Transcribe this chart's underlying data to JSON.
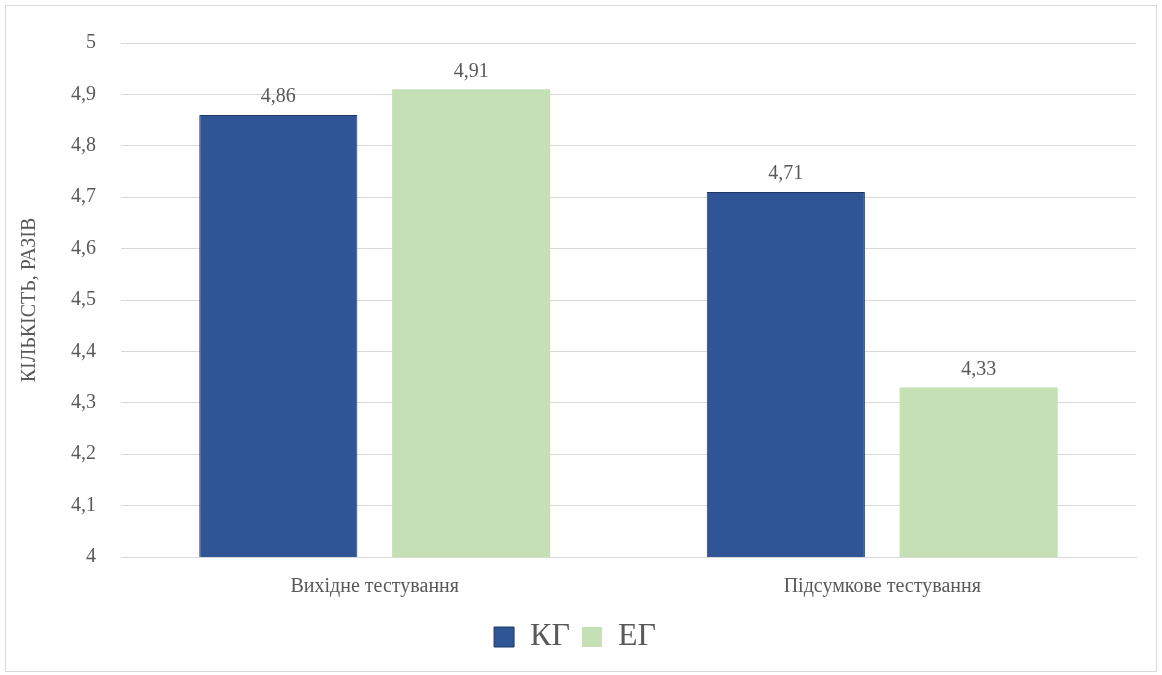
{
  "chart_data": {
    "type": "bar",
    "ylabel": "КІЛЬКІСТЬ, РАЗІВ",
    "categories": [
      "Вихідне тестування",
      "Підсумкове тестування"
    ],
    "series": [
      {
        "name": "КГ",
        "color": "#2f5597",
        "values": [
          4.86,
          4.71
        ],
        "value_labels": [
          "4,86",
          "4,71"
        ]
      },
      {
        "name": "ЕГ",
        "color": "#c5e0b4",
        "values": [
          4.91,
          4.33
        ],
        "value_labels": [
          "4,91",
          "4,33"
        ]
      }
    ],
    "ylim": [
      4,
      5
    ],
    "yticks": [
      4,
      {
        "value": 4.1,
        "label": "4,1"
      },
      {
        "value": 4.2,
        "label": "4,2"
      },
      {
        "value": 4.3,
        "label": "4,3"
      },
      {
        "value": 4.4,
        "label": "4,4"
      },
      {
        "value": 4.5,
        "label": "4,5"
      },
      {
        "value": 4.6,
        "label": "4,6"
      },
      {
        "value": 4.7,
        "label": "4,7"
      },
      {
        "value": 4.8,
        "label": "4,8"
      },
      {
        "value": 4.9,
        "label": "4,9"
      },
      5
    ],
    "grid": "y",
    "legend": "bottom"
  }
}
